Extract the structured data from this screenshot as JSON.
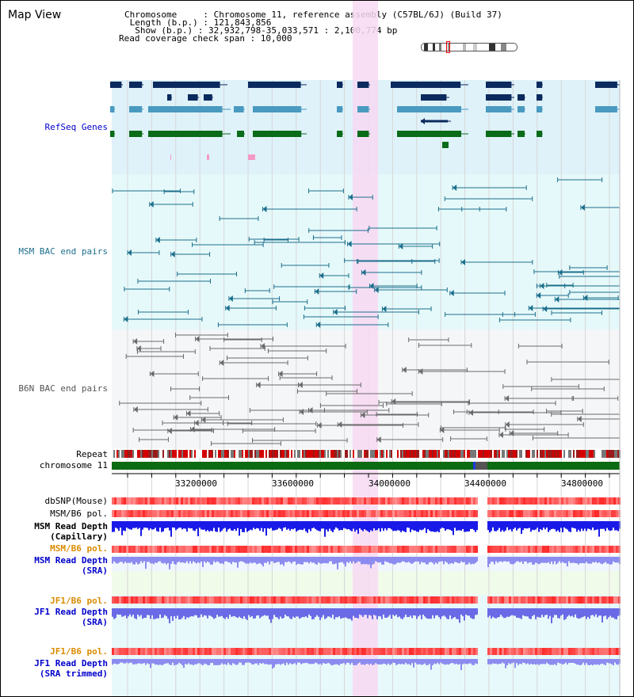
{
  "header": {
    "title": "Map View",
    "info_lines": [
      "Chromosome     : Chromosome 11, reference assembly (C57BL/6J) (Build 37)",
      " Length (b.p.) : 121,843,856",
      "  Show (b.p.) : 32,932,798-35,033,571 : 2,100,774 bp",
      "Read coverage check span : 10,000"
    ]
  },
  "tracks": {
    "refseq_genes": "RefSeq Genes",
    "msm_bac": "MSM BAC end pairs",
    "b6n_bac": "B6N BAC end pairs",
    "repeat": "Repeat",
    "chromosome": "chromosome 11",
    "dbsnp": "dbSNP(Mouse)",
    "msm_b6_pol_1": "MSM/B6 pol.",
    "msm_read_depth_cap_1": "MSM Read Depth",
    "msm_read_depth_cap_2": "(Capillary)",
    "msm_b6_pol_2": "MSM/B6 pol.",
    "msm_read_depth_sra_1": "MSM Read Depth",
    "msm_read_depth_sra_2": "(SRA)",
    "jf1_b6_pol_1": "JF1/B6 pol.",
    "jf1_read_depth_sra_1": "JF1 Read Depth",
    "jf1_read_depth_sra_2": "(SRA)",
    "jf1_b6_pol_2": "JF1/B6 pol.",
    "jf1_read_depth_trim_1": "JF1 Read Depth",
    "jf1_read_depth_trim_2": "(SRA trimmed)"
  },
  "axis": {
    "ticks": [
      "33200000",
      "33600000",
      "34000000",
      "34400000",
      "34800000"
    ]
  },
  "colors": {
    "refseq_bg": "#dff2fa",
    "msm_bg": "#e6f9fa",
    "b6n_bg": "#f4f6f8",
    "highlight": "#f7d9f2",
    "gene_dark": "#0b2a5e",
    "gene_mid": "#4a9ac0",
    "gene_green": "#0a6b18",
    "msm_line": "#1c6f8c",
    "b6n_line": "#6a6a6a",
    "label_blue": "#0000cc",
    "label_teal": "#1c6f8c",
    "label_gray": "#555555",
    "label_orange": "#d98c00"
  }
}
